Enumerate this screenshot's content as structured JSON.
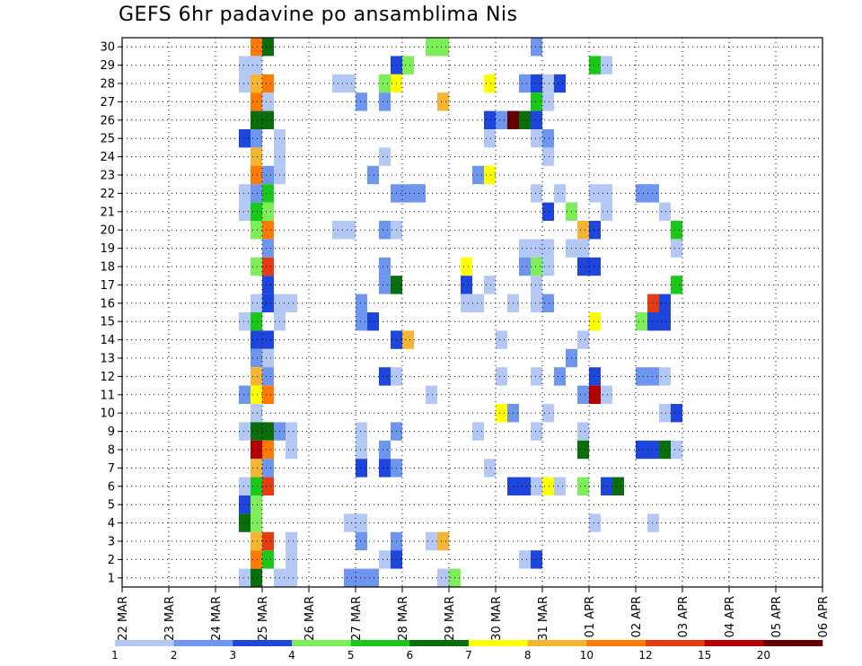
{
  "chart_data": {
    "type": "heatmap",
    "title": "GEFS 6hr padavine po ansamblima Nis",
    "xlabel": "",
    "ylabel": "",
    "x_range": [
      0,
      15
    ],
    "y_range": [
      0,
      30
    ],
    "date_ticks": [
      "22 MAR",
      "23 MAR",
      "24 MAR",
      "25 MAR",
      "26 MAR",
      "27 MAR",
      "28 MAR",
      "29 MAR",
      "30 MAR",
      "31 MAR",
      "01 APR",
      "02 APR",
      "03 APR",
      "04 APR",
      "05 APR",
      "06 APR"
    ],
    "member_ticks": [
      "1",
      "2",
      "3",
      "4",
      "5",
      "6",
      "7",
      "8",
      "9",
      "10",
      "11",
      "12",
      "13",
      "14",
      "15",
      "16",
      "17",
      "18",
      "19",
      "20",
      "21",
      "22",
      "23",
      "24",
      "25",
      "26",
      "27",
      "28",
      "29",
      "30"
    ],
    "grid": true,
    "legend_placement": "bottom",
    "legend": {
      "labels": [
        "1",
        "2",
        "3",
        "4",
        "5",
        "6",
        "7",
        "8",
        "10",
        "12",
        "15",
        "20"
      ],
      "colors": [
        "#b4c8f5",
        "#6e96ee",
        "#1e46dc",
        "#7dee5a",
        "#19c819",
        "#0a6e0a",
        "#ffff00",
        "#f5b432",
        "#ff7a00",
        "#e63c14",
        "#b40000",
        "#640000"
      ]
    },
    "bins": [
      "1-2",
      "2-3",
      "3-4",
      "4-5",
      "5-6",
      "6-7",
      "7-8",
      "8-10",
      "10-12",
      "12-15",
      "15-20",
      "20+"
    ],
    "cells": [
      [
        "24.75",
        30,
        "10-12"
      ],
      [
        "25.0",
        30,
        "6-7"
      ],
      [
        "28.5",
        30,
        "4-5"
      ],
      [
        "28.75",
        30,
        "4-5"
      ],
      [
        "30.75",
        30,
        "2-3"
      ],
      [
        "24.5",
        29,
        "1-2"
      ],
      [
        "24.75",
        29,
        "1-2"
      ],
      [
        "27.75",
        29,
        "3-4"
      ],
      [
        "28.0",
        29,
        "4-5"
      ],
      [
        "32.0",
        29,
        "5-6"
      ],
      [
        "32.25",
        29,
        "1-2"
      ],
      [
        "24.5",
        28,
        "1-2"
      ],
      [
        "24.75",
        28,
        "8-10"
      ],
      [
        "25.0",
        28,
        "10-12"
      ],
      [
        "26.5",
        28,
        "1-2"
      ],
      [
        "26.75",
        28,
        "1-2"
      ],
      [
        "27.5",
        28,
        "4-5"
      ],
      [
        "27.75",
        28,
        "7-8"
      ],
      [
        "29.75",
        28,
        "7-8"
      ],
      [
        "30.5",
        28,
        "2-3"
      ],
      [
        "30.75",
        28,
        "3-4"
      ],
      [
        "31.0",
        28,
        "1-2"
      ],
      [
        "31.25",
        28,
        "3-4"
      ],
      [
        "24.75",
        27,
        "10-12"
      ],
      [
        "25.0",
        27,
        "1-2"
      ],
      [
        "27.0",
        27,
        "2-3"
      ],
      [
        "27.5",
        27,
        "2-3"
      ],
      [
        "28.75",
        27,
        "8-10"
      ],
      [
        "30.75",
        27,
        "5-6"
      ],
      [
        "31.0",
        27,
        "1-2"
      ],
      [
        "24.75",
        26,
        "6-7"
      ],
      [
        "25.0",
        26,
        "6-7"
      ],
      [
        "29.75",
        26,
        "3-4"
      ],
      [
        "30.0",
        26,
        "2-3"
      ],
      [
        "30.25",
        26,
        "20+"
      ],
      [
        "30.5",
        26,
        "6-7"
      ],
      [
        "30.75",
        26,
        "3-4"
      ],
      [
        "24.5",
        25,
        "3-4"
      ],
      [
        "24.75",
        25,
        "2-3"
      ],
      [
        "25.25",
        25,
        "1-2"
      ],
      [
        "29.75",
        25,
        "1-2"
      ],
      [
        "30.75",
        25,
        "1-2"
      ],
      [
        "31.0",
        25,
        "2-3"
      ],
      [
        "24.75",
        24,
        "8-10"
      ],
      [
        "25.25",
        24,
        "1-2"
      ],
      [
        "27.5",
        24,
        "1-2"
      ],
      [
        "31.0",
        24,
        "1-2"
      ],
      [
        "24.75",
        23,
        "10-12"
      ],
      [
        "25.0",
        23,
        "2-3"
      ],
      [
        "25.25",
        23,
        "1-2"
      ],
      [
        "27.25",
        23,
        "2-3"
      ],
      [
        "29.5",
        23,
        "2-3"
      ],
      [
        "29.75",
        23,
        "7-8"
      ],
      [
        "24.5",
        22,
        "1-2"
      ],
      [
        "24.75",
        22,
        "2-3"
      ],
      [
        "25.0",
        22,
        "5-6"
      ],
      [
        "27.75",
        22,
        "2-3"
      ],
      [
        "28.0",
        22,
        "2-3"
      ],
      [
        "28.25",
        22,
        "2-3"
      ],
      [
        "32.0",
        22,
        "1-2"
      ],
      [
        "32.25",
        22,
        "1-2"
      ],
      [
        "33.0",
        22,
        "2-3"
      ],
      [
        "33.25",
        22,
        "2-3"
      ],
      [
        "30.75",
        22,
        "1-2"
      ],
      [
        "31.25",
        22,
        "1-2"
      ],
      [
        "24.5",
        21,
        "1-2"
      ],
      [
        "24.75",
        21,
        "5-6"
      ],
      [
        "25.0",
        21,
        "4-5"
      ],
      [
        "32.25",
        21,
        "1-2"
      ],
      [
        "33.5",
        21,
        "1-2"
      ],
      [
        "31.0",
        21,
        "3-4"
      ],
      [
        "31.5",
        21,
        "4-5"
      ],
      [
        "24.75",
        20,
        "4-5"
      ],
      [
        "25.0",
        20,
        "10-12"
      ],
      [
        "26.5",
        20,
        "1-2"
      ],
      [
        "26.75",
        20,
        "1-2"
      ],
      [
        "27.5",
        20,
        "2-3"
      ],
      [
        "27.75",
        20,
        "1-2"
      ],
      [
        "33.75",
        20,
        "5-6"
      ],
      [
        "31.75",
        20,
        "8-10"
      ],
      [
        "32.0",
        20,
        "3-4"
      ],
      [
        "25.0",
        19,
        "2-3"
      ],
      [
        "33.75",
        19,
        "1-2"
      ],
      [
        "30.5",
        19,
        "1-2"
      ],
      [
        "30.75",
        19,
        "1-2"
      ],
      [
        "31.0",
        19,
        "1-2"
      ],
      [
        "31.5",
        19,
        "1-2"
      ],
      [
        "31.75",
        19,
        "1-2"
      ],
      [
        "24.75",
        18,
        "4-5"
      ],
      [
        "25.0",
        18,
        "12-15"
      ],
      [
        "27.5",
        18,
        "2-3"
      ],
      [
        "29.25",
        18,
        "7-8"
      ],
      [
        "30.5",
        18,
        "2-3"
      ],
      [
        "30.75",
        18,
        "4-5"
      ],
      [
        "31.0",
        18,
        "1-2"
      ],
      [
        "31.75",
        18,
        "3-4"
      ],
      [
        "32.0",
        18,
        "3-4"
      ],
      [
        "25.0",
        17,
        "3-4"
      ],
      [
        "27.5",
        17,
        "2-3"
      ],
      [
        "27.75",
        17,
        "6-7"
      ],
      [
        "29.25",
        17,
        "3-4"
      ],
      [
        "29.75",
        17,
        "1-2"
      ],
      [
        "33.75",
        17,
        "5-6"
      ],
      [
        "30.75",
        17,
        "1-2"
      ],
      [
        "24.75",
        16,
        "1-2"
      ],
      [
        "25.0",
        16,
        "3-4"
      ],
      [
        "25.25",
        16,
        "1-2"
      ],
      [
        "25.5",
        16,
        "1-2"
      ],
      [
        "27.0",
        16,
        "2-3"
      ],
      [
        "29.25",
        16,
        "1-2"
      ],
      [
        "29.5",
        16,
        "1-2"
      ],
      [
        "33.25",
        16,
        "12-15"
      ],
      [
        "33.5",
        16,
        "3-4"
      ],
      [
        "30.25",
        16,
        "1-2"
      ],
      [
        "30.75",
        16,
        "1-2"
      ],
      [
        "31.0",
        16,
        "2-3"
      ],
      [
        "24.5",
        15,
        "1-2"
      ],
      [
        "24.75",
        15,
        "5-6"
      ],
      [
        "25.25",
        15,
        "1-2"
      ],
      [
        "27.0",
        15,
        "2-3"
      ],
      [
        "27.25",
        15,
        "3-4"
      ],
      [
        "32.0",
        15,
        "7-8"
      ],
      [
        "33.0",
        15,
        "4-5"
      ],
      [
        "33.25",
        15,
        "3-4"
      ],
      [
        "33.5",
        15,
        "3-4"
      ],
      [
        "24.75",
        14,
        "3-4"
      ],
      [
        "25.0",
        14,
        "3-4"
      ],
      [
        "27.75",
        14,
        "3-4"
      ],
      [
        "28.0",
        14,
        "8-10"
      ],
      [
        "30.0",
        14,
        "1-2"
      ],
      [
        "31.75",
        14,
        "1-2"
      ],
      [
        "24.75",
        13,
        "2-3"
      ],
      [
        "25.0",
        13,
        "1-2"
      ],
      [
        "31.5",
        13,
        "2-3"
      ],
      [
        "24.75",
        12,
        "8-10"
      ],
      [
        "25.0",
        12,
        "2-3"
      ],
      [
        "27.5",
        12,
        "3-4"
      ],
      [
        "27.75",
        12,
        "1-2"
      ],
      [
        "32.0",
        12,
        "3-4"
      ],
      [
        "33.0",
        12,
        "2-3"
      ],
      [
        "33.25",
        12,
        "2-3"
      ],
      [
        "33.5",
        12,
        "1-2"
      ],
      [
        "30.0",
        12,
        "1-2"
      ],
      [
        "30.75",
        12,
        "1-2"
      ],
      [
        "31.25",
        12,
        "2-3"
      ],
      [
        "24.5",
        11,
        "2-3"
      ],
      [
        "24.75",
        11,
        "7-8"
      ],
      [
        "25.0",
        11,
        "10-12"
      ],
      [
        "28.5",
        11,
        "1-2"
      ],
      [
        "31.75",
        11,
        "2-3"
      ],
      [
        "32.0",
        11,
        "15-20"
      ],
      [
        "32.25",
        11,
        "1-2"
      ],
      [
        "24.75",
        10,
        "1-2"
      ],
      [
        "33.5",
        10,
        "1-2"
      ],
      [
        "33.75",
        10,
        "3-4"
      ],
      [
        "30.0",
        10,
        "7-8"
      ],
      [
        "30.25",
        10,
        "2-3"
      ],
      [
        "31.0",
        10,
        "1-2"
      ],
      [
        "24.5",
        9,
        "1-2"
      ],
      [
        "24.75",
        9,
        "6-7"
      ],
      [
        "25.0",
        9,
        "6-7"
      ],
      [
        "25.25",
        9,
        "2-3"
      ],
      [
        "25.5",
        9,
        "1-2"
      ],
      [
        "27.0",
        9,
        "1-2"
      ],
      [
        "27.75",
        9,
        "2-3"
      ],
      [
        "29.5",
        9,
        "1-2"
      ],
      [
        "30.75",
        9,
        "1-2"
      ],
      [
        "31.75",
        9,
        "1-2"
      ],
      [
        "24.75",
        8,
        "15-20"
      ],
      [
        "25.0",
        8,
        "10-12"
      ],
      [
        "25.5",
        8,
        "1-2"
      ],
      [
        "27.0",
        8,
        "1-2"
      ],
      [
        "27.5",
        8,
        "2-3"
      ],
      [
        "33.0",
        8,
        "3-4"
      ],
      [
        "33.25",
        8,
        "3-4"
      ],
      [
        "33.5",
        8,
        "6-7"
      ],
      [
        "33.75",
        8,
        "1-2"
      ],
      [
        "31.75",
        8,
        "6-7"
      ],
      [
        "24.75",
        7,
        "8-10"
      ],
      [
        "25.0",
        7,
        "2-3"
      ],
      [
        "27.0",
        7,
        "3-4"
      ],
      [
        "27.5",
        7,
        "3-4"
      ],
      [
        "27.75",
        7,
        "2-3"
      ],
      [
        "29.75",
        7,
        "1-2"
      ],
      [
        "24.5",
        6,
        "1-2"
      ],
      [
        "24.75",
        6,
        "5-6"
      ],
      [
        "25.0",
        6,
        "12-15"
      ],
      [
        "32.25",
        6,
        "3-4"
      ],
      [
        "32.5",
        6,
        "6-7"
      ],
      [
        "30.25",
        6,
        "3-4"
      ],
      [
        "30.5",
        6,
        "3-4"
      ],
      [
        "30.75",
        6,
        "1-2"
      ],
      [
        "31.0",
        6,
        "7-8"
      ],
      [
        "31.25",
        6,
        "1-2"
      ],
      [
        "31.75",
        6,
        "4-5"
      ],
      [
        "24.5",
        5,
        "3-4"
      ],
      [
        "24.75",
        5,
        "4-5"
      ],
      [
        "24.5",
        4,
        "6-7"
      ],
      [
        "24.75",
        4,
        "4-5"
      ],
      [
        "26.75",
        4,
        "1-2"
      ],
      [
        "27.0",
        4,
        "1-2"
      ],
      [
        "32.0",
        4,
        "1-2"
      ],
      [
        "33.25",
        4,
        "1-2"
      ],
      [
        "24.75",
        3,
        "8-10"
      ],
      [
        "25.0",
        3,
        "12-15"
      ],
      [
        "25.5",
        3,
        "1-2"
      ],
      [
        "27.0",
        3,
        "2-3"
      ],
      [
        "27.75",
        3,
        "2-3"
      ],
      [
        "28.5",
        3,
        "1-2"
      ],
      [
        "28.75",
        3,
        "8-10"
      ],
      [
        "24.75",
        2,
        "10-12"
      ],
      [
        "25.0",
        2,
        "5-6"
      ],
      [
        "25.5",
        2,
        "1-2"
      ],
      [
        "27.5",
        2,
        "1-2"
      ],
      [
        "27.75",
        2,
        "3-4"
      ],
      [
        "30.5",
        2,
        "1-2"
      ],
      [
        "30.75",
        2,
        "3-4"
      ],
      [
        "24.5",
        1,
        "1-2"
      ],
      [
        "24.75",
        1,
        "6-7"
      ],
      [
        "25.25",
        1,
        "1-2"
      ],
      [
        "25.5",
        1,
        "1-2"
      ],
      [
        "26.75",
        1,
        "2-3"
      ],
      [
        "27.0",
        1,
        "2-3"
      ],
      [
        "27.25",
        1,
        "2-3"
      ],
      [
        "28.75",
        1,
        "1-2"
      ],
      [
        "29.0",
        1,
        "4-5"
      ]
    ]
  }
}
